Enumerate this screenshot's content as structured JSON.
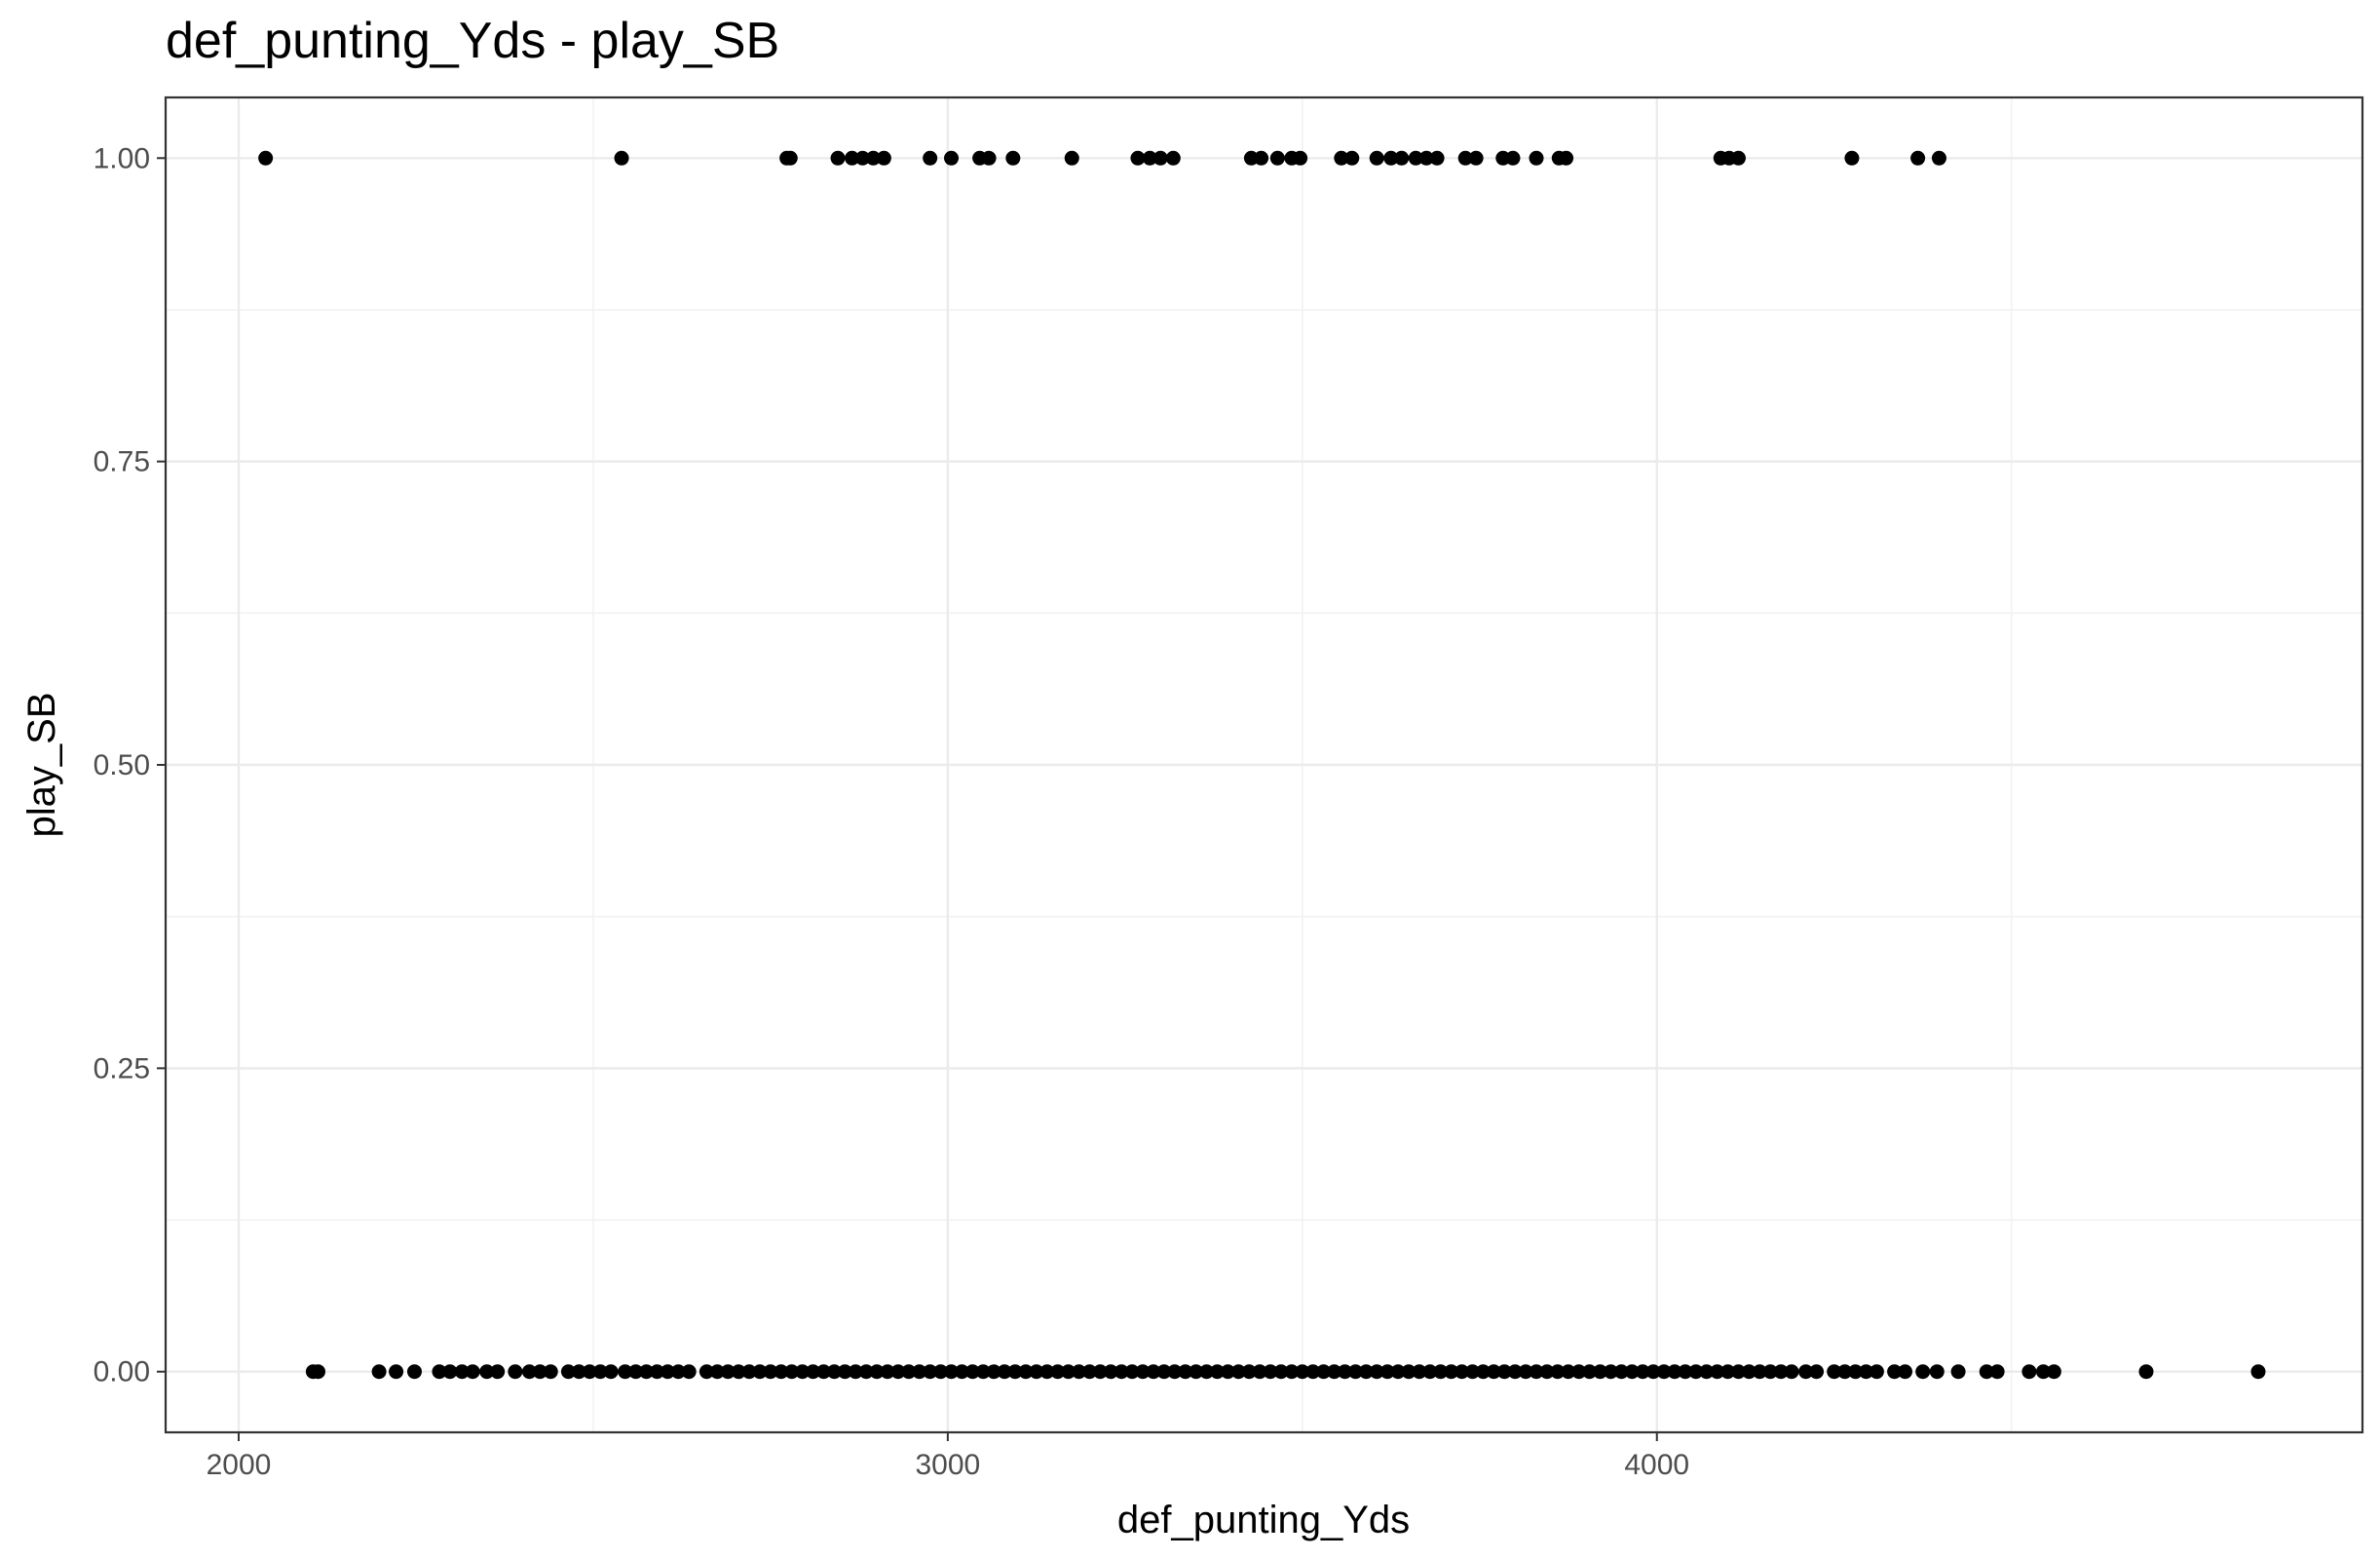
{
  "chart_data": {
    "type": "scatter",
    "title": "def_punting_Yds - play_SB",
    "xlabel": "def_punting_Yds",
    "ylabel": "play_SB",
    "xlim": [
      1897,
      4995
    ],
    "ylim": [
      -0.05,
      1.05
    ],
    "x_ticks": [
      2000,
      3000,
      4000
    ],
    "x_tick_labels": [
      "2000",
      "3000",
      "4000"
    ],
    "x_minor_ticks": [
      2500,
      3500,
      4500
    ],
    "y_ticks": [
      0,
      0.25,
      0.5,
      0.75,
      1.0
    ],
    "y_tick_labels": [
      "0.00",
      "0.25",
      "0.50",
      "0.75",
      "1.00"
    ],
    "y_minor_ticks": [
      0.125,
      0.375,
      0.625,
      0.875
    ],
    "grid": true,
    "point_color": "#000000",
    "series": [
      {
        "name": "",
        "points": [
          {
            "x": 2038,
            "y": 1
          },
          {
            "x": 2540,
            "y": 1
          },
          {
            "x": 2773,
            "y": 1
          },
          {
            "x": 2778,
            "y": 1
          },
          {
            "x": 2845,
            "y": 1
          },
          {
            "x": 2865,
            "y": 1
          },
          {
            "x": 2880,
            "y": 1
          },
          {
            "x": 2895,
            "y": 1
          },
          {
            "x": 2910,
            "y": 1
          },
          {
            "x": 2975,
            "y": 1
          },
          {
            "x": 3005,
            "y": 1
          },
          {
            "x": 3045,
            "y": 1
          },
          {
            "x": 3058,
            "y": 1
          },
          {
            "x": 3092,
            "y": 1
          },
          {
            "x": 3175,
            "y": 1
          },
          {
            "x": 3268,
            "y": 1
          },
          {
            "x": 3285,
            "y": 1
          },
          {
            "x": 3300,
            "y": 1
          },
          {
            "x": 3318,
            "y": 1
          },
          {
            "x": 3428,
            "y": 1
          },
          {
            "x": 3442,
            "y": 1
          },
          {
            "x": 3465,
            "y": 1
          },
          {
            "x": 3485,
            "y": 1
          },
          {
            "x": 3497,
            "y": 1
          },
          {
            "x": 3555,
            "y": 1
          },
          {
            "x": 3570,
            "y": 1
          },
          {
            "x": 3605,
            "y": 1
          },
          {
            "x": 3625,
            "y": 1
          },
          {
            "x": 3640,
            "y": 1
          },
          {
            "x": 3660,
            "y": 1
          },
          {
            "x": 3675,
            "y": 1
          },
          {
            "x": 3690,
            "y": 1
          },
          {
            "x": 3730,
            "y": 1
          },
          {
            "x": 3745,
            "y": 1
          },
          {
            "x": 3783,
            "y": 1
          },
          {
            "x": 3797,
            "y": 1
          },
          {
            "x": 3830,
            "y": 1
          },
          {
            "x": 3862,
            "y": 1
          },
          {
            "x": 3872,
            "y": 1
          },
          {
            "x": 4090,
            "y": 1
          },
          {
            "x": 4102,
            "y": 1
          },
          {
            "x": 4115,
            "y": 1
          },
          {
            "x": 4275,
            "y": 1
          },
          {
            "x": 4368,
            "y": 1
          },
          {
            "x": 4398,
            "y": 1
          },
          {
            "x": 2105,
            "y": 0
          },
          {
            "x": 2112,
            "y": 0
          },
          {
            "x": 2198,
            "y": 0
          },
          {
            "x": 2222,
            "y": 0
          },
          {
            "x": 2248,
            "y": 0
          },
          {
            "x": 2283,
            "y": 0
          },
          {
            "x": 2298,
            "y": 0
          },
          {
            "x": 2315,
            "y": 0
          },
          {
            "x": 2330,
            "y": 0
          },
          {
            "x": 2350,
            "y": 0
          },
          {
            "x": 2365,
            "y": 0
          },
          {
            "x": 2390,
            "y": 0
          },
          {
            "x": 2410,
            "y": 0
          },
          {
            "x": 2425,
            "y": 0
          },
          {
            "x": 2440,
            "y": 0
          },
          {
            "x": 2465,
            "y": 0
          },
          {
            "x": 2480,
            "y": 0
          },
          {
            "x": 2495,
            "y": 0
          },
          {
            "x": 2510,
            "y": 0
          },
          {
            "x": 2525,
            "y": 0
          },
          {
            "x": 2545,
            "y": 0
          },
          {
            "x": 2560,
            "y": 0
          },
          {
            "x": 2575,
            "y": 0
          },
          {
            "x": 2590,
            "y": 0
          },
          {
            "x": 2605,
            "y": 0
          },
          {
            "x": 2620,
            "y": 0
          },
          {
            "x": 2635,
            "y": 0
          },
          {
            "x": 2660,
            "y": 0
          },
          {
            "x": 2675,
            "y": 0
          },
          {
            "x": 2690,
            "y": 0
          },
          {
            "x": 2705,
            "y": 0
          },
          {
            "x": 2720,
            "y": 0
          },
          {
            "x": 2735,
            "y": 0
          },
          {
            "x": 2750,
            "y": 0
          },
          {
            "x": 2765,
            "y": 0
          },
          {
            "x": 2780,
            "y": 0
          },
          {
            "x": 2795,
            "y": 0
          },
          {
            "x": 2810,
            "y": 0
          },
          {
            "x": 2825,
            "y": 0
          },
          {
            "x": 2840,
            "y": 0
          },
          {
            "x": 2855,
            "y": 0
          },
          {
            "x": 2870,
            "y": 0
          },
          {
            "x": 2885,
            "y": 0
          },
          {
            "x": 2900,
            "y": 0
          },
          {
            "x": 2915,
            "y": 0
          },
          {
            "x": 2930,
            "y": 0
          },
          {
            "x": 2945,
            "y": 0
          },
          {
            "x": 2960,
            "y": 0
          },
          {
            "x": 2975,
            "y": 0
          },
          {
            "x": 2990,
            "y": 0
          },
          {
            "x": 3005,
            "y": 0
          },
          {
            "x": 3020,
            "y": 0
          },
          {
            "x": 3035,
            "y": 0
          },
          {
            "x": 3050,
            "y": 0
          },
          {
            "x": 3065,
            "y": 0
          },
          {
            "x": 3080,
            "y": 0
          },
          {
            "x": 3095,
            "y": 0
          },
          {
            "x": 3110,
            "y": 0
          },
          {
            "x": 3125,
            "y": 0
          },
          {
            "x": 3140,
            "y": 0
          },
          {
            "x": 3155,
            "y": 0
          },
          {
            "x": 3170,
            "y": 0
          },
          {
            "x": 3185,
            "y": 0
          },
          {
            "x": 3200,
            "y": 0
          },
          {
            "x": 3215,
            "y": 0
          },
          {
            "x": 3230,
            "y": 0
          },
          {
            "x": 3245,
            "y": 0
          },
          {
            "x": 3260,
            "y": 0
          },
          {
            "x": 3275,
            "y": 0
          },
          {
            "x": 3290,
            "y": 0
          },
          {
            "x": 3305,
            "y": 0
          },
          {
            "x": 3320,
            "y": 0
          },
          {
            "x": 3335,
            "y": 0
          },
          {
            "x": 3350,
            "y": 0
          },
          {
            "x": 3365,
            "y": 0
          },
          {
            "x": 3380,
            "y": 0
          },
          {
            "x": 3395,
            "y": 0
          },
          {
            "x": 3410,
            "y": 0
          },
          {
            "x": 3425,
            "y": 0
          },
          {
            "x": 3440,
            "y": 0
          },
          {
            "x": 3455,
            "y": 0
          },
          {
            "x": 3470,
            "y": 0
          },
          {
            "x": 3485,
            "y": 0
          },
          {
            "x": 3500,
            "y": 0
          },
          {
            "x": 3515,
            "y": 0
          },
          {
            "x": 3530,
            "y": 0
          },
          {
            "x": 3545,
            "y": 0
          },
          {
            "x": 3560,
            "y": 0
          },
          {
            "x": 3575,
            "y": 0
          },
          {
            "x": 3590,
            "y": 0
          },
          {
            "x": 3605,
            "y": 0
          },
          {
            "x": 3620,
            "y": 0
          },
          {
            "x": 3635,
            "y": 0
          },
          {
            "x": 3650,
            "y": 0
          },
          {
            "x": 3665,
            "y": 0
          },
          {
            "x": 3680,
            "y": 0
          },
          {
            "x": 3695,
            "y": 0
          },
          {
            "x": 3710,
            "y": 0
          },
          {
            "x": 3725,
            "y": 0
          },
          {
            "x": 3740,
            "y": 0
          },
          {
            "x": 3755,
            "y": 0
          },
          {
            "x": 3770,
            "y": 0
          },
          {
            "x": 3785,
            "y": 0
          },
          {
            "x": 3800,
            "y": 0
          },
          {
            "x": 3815,
            "y": 0
          },
          {
            "x": 3830,
            "y": 0
          },
          {
            "x": 3845,
            "y": 0
          },
          {
            "x": 3860,
            "y": 0
          },
          {
            "x": 3875,
            "y": 0
          },
          {
            "x": 3890,
            "y": 0
          },
          {
            "x": 3905,
            "y": 0
          },
          {
            "x": 3920,
            "y": 0
          },
          {
            "x": 3935,
            "y": 0
          },
          {
            "x": 3950,
            "y": 0
          },
          {
            "x": 3965,
            "y": 0
          },
          {
            "x": 3980,
            "y": 0
          },
          {
            "x": 3995,
            "y": 0
          },
          {
            "x": 4010,
            "y": 0
          },
          {
            "x": 4025,
            "y": 0
          },
          {
            "x": 4040,
            "y": 0
          },
          {
            "x": 4055,
            "y": 0
          },
          {
            "x": 4070,
            "y": 0
          },
          {
            "x": 4085,
            "y": 0
          },
          {
            "x": 4100,
            "y": 0
          },
          {
            "x": 4115,
            "y": 0
          },
          {
            "x": 4130,
            "y": 0
          },
          {
            "x": 4145,
            "y": 0
          },
          {
            "x": 4160,
            "y": 0
          },
          {
            "x": 4175,
            "y": 0
          },
          {
            "x": 4190,
            "y": 0
          },
          {
            "x": 4210,
            "y": 0
          },
          {
            "x": 4225,
            "y": 0
          },
          {
            "x": 4250,
            "y": 0
          },
          {
            "x": 4265,
            "y": 0
          },
          {
            "x": 4280,
            "y": 0
          },
          {
            "x": 4295,
            "y": 0
          },
          {
            "x": 4310,
            "y": 0
          },
          {
            "x": 4335,
            "y": 0
          },
          {
            "x": 4350,
            "y": 0
          },
          {
            "x": 4375,
            "y": 0
          },
          {
            "x": 4395,
            "y": 0
          },
          {
            "x": 4425,
            "y": 0
          },
          {
            "x": 4465,
            "y": 0
          },
          {
            "x": 4480,
            "y": 0
          },
          {
            "x": 4525,
            "y": 0
          },
          {
            "x": 4545,
            "y": 0
          },
          {
            "x": 4560,
            "y": 0
          },
          {
            "x": 4690,
            "y": 0
          },
          {
            "x": 4848,
            "y": 0
          }
        ]
      }
    ]
  }
}
